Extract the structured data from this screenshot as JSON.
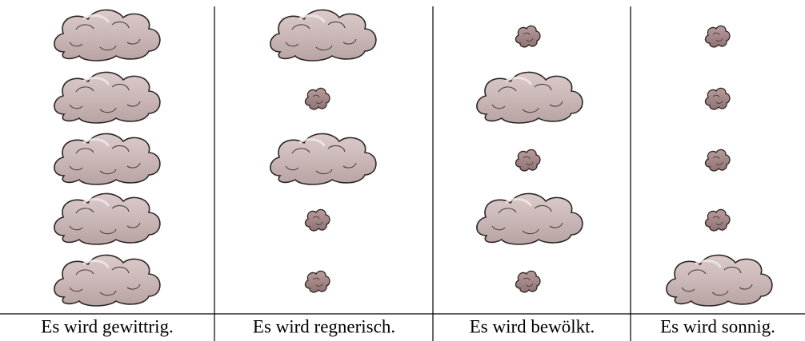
{
  "captions": [
    "Es wird gewittrig.",
    "Es wird regnerisch.",
    "Es wird bewölkt.",
    "Es wird sonnig."
  ]
}
